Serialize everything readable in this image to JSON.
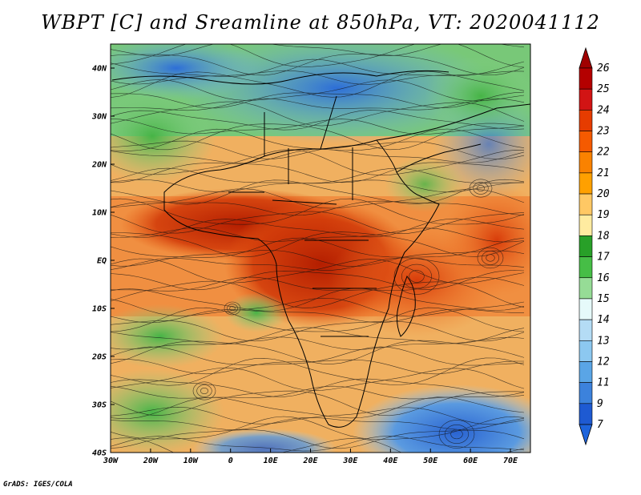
{
  "title": "WBPT [C] and Sreamline at 850hPa, VT: 2020041112",
  "footer": "GrADS: IGES/COLA",
  "map": {
    "lat_labels": [
      "40N",
      "30N",
      "20N",
      "10N",
      "EQ",
      "10S",
      "20S",
      "30S",
      "40S"
    ],
    "lon_labels": [
      "30W",
      "20W",
      "10W",
      "0",
      "10E",
      "20E",
      "30E",
      "40E",
      "50E",
      "60E",
      "70E"
    ],
    "lon_range": [
      -30,
      75
    ],
    "lat_range": [
      -40,
      45
    ]
  },
  "colorbar": {
    "labels": [
      "26",
      "25",
      "24",
      "23",
      "22",
      "21",
      "20",
      "19",
      "18",
      "17",
      "16",
      "15",
      "14",
      "13",
      "12",
      "11",
      "9",
      "7"
    ],
    "colors": [
      "#b40000",
      "#d21414",
      "#e63c00",
      "#f55a00",
      "#fa8200",
      "#ffa000",
      "#ffc864",
      "#ffeba0",
      "#28a028",
      "#46be46",
      "#96dc96",
      "#e6fafa",
      "#b4dcf5",
      "#8cc8f0",
      "#5aa5e6",
      "#3c82dc",
      "#1e5ad2"
    ],
    "top_arrow_color": "#a00000",
    "bottom_arrow_color": "#1e64dc"
  }
}
